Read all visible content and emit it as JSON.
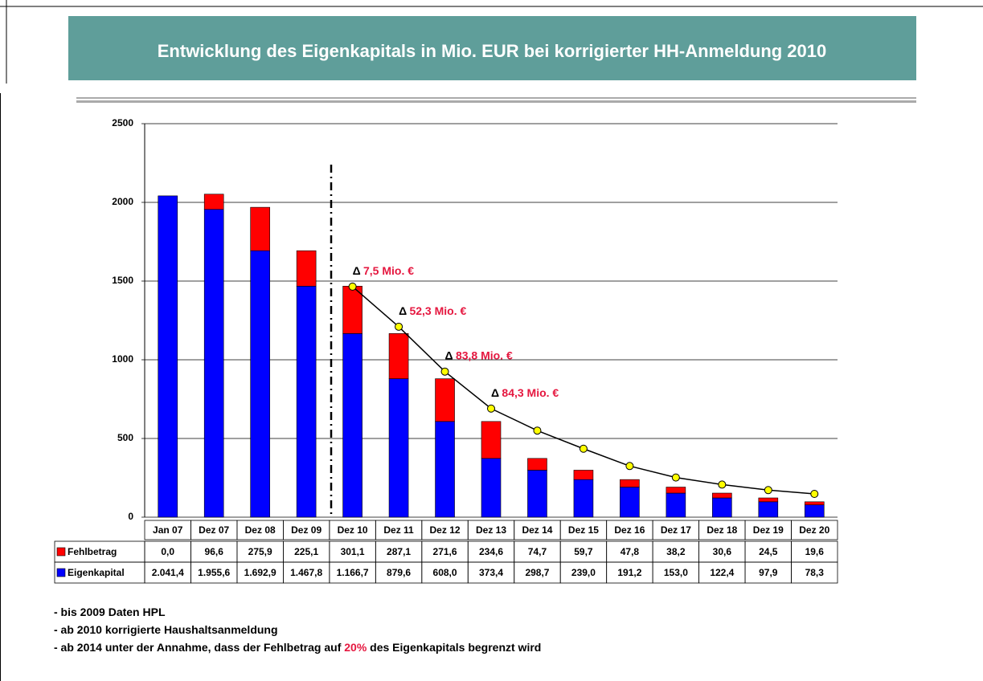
{
  "chart_data": {
    "type": "bar",
    "stacked": true,
    "title": "Entwicklung des Eigenkapitals in Mio. EUR bei korrigierter HH-Anmeldung 2010",
    "categories": [
      "Jan 07",
      "Dez 07",
      "Dez 08",
      "Dez 09",
      "Dez 10",
      "Dez 11",
      "Dez 12",
      "Dez 13",
      "Dez 14",
      "Dez 15",
      "Dez 16",
      "Dez 17",
      "Dez 18",
      "Dez 19",
      "Dez 20"
    ],
    "series": [
      {
        "name": "Eigenkapital",
        "color": "#0000ff",
        "values": [
          2041.4,
          1955.6,
          1692.9,
          1467.8,
          1166.7,
          879.6,
          608.0,
          373.4,
          298.7,
          239.0,
          191.2,
          153.0,
          122.4,
          97.9,
          78.3
        ],
        "value_labels": [
          "2.041,4",
          "1.955,6",
          "1.692,9",
          "1.467,8",
          "1.166,7",
          "879,6",
          "608,0",
          "373,4",
          "298,7",
          "239,0",
          "191,2",
          "153,0",
          "122,4",
          "97,9",
          "78,3"
        ]
      },
      {
        "name": "Fehlbetrag",
        "color": "#ff0000",
        "values": [
          0,
          96.6,
          275.9,
          225.1,
          301.1,
          287.1,
          271.6,
          234.6,
          74.7,
          59.7,
          47.8,
          38.2,
          30.6,
          24.5,
          19.6
        ],
        "value_labels": [
          "0,0",
          "96,6",
          "275,9",
          "225,1",
          "301,1",
          "287,1",
          "271,6",
          "234,6",
          "74,7",
          "59,7",
          "47,8",
          "38,2",
          "30,6",
          "24,5",
          "19,6"
        ]
      },
      {
        "type": "line",
        "color": "#000000",
        "marker_color": "#ffff00",
        "values": [
          null,
          null,
          null,
          null,
          1465,
          1210,
          925,
          690,
          550,
          435,
          325,
          252,
          207,
          172,
          148
        ]
      }
    ],
    "ylim": [
      0,
      2500
    ],
    "yticks": [
      0,
      500,
      1000,
      1500,
      2000,
      2500
    ],
    "grid": true,
    "annotations": [
      {
        "delta": "Δ",
        "text": "7,5 Mio. €"
      },
      {
        "delta": "Δ",
        "text": "52,3 Mio. €"
      },
      {
        "delta": "Δ",
        "text": "83,8 Mio. €"
      },
      {
        "delta": "Δ",
        "text": "84,3 Mio. €"
      }
    ],
    "notes": [
      [
        "- bis 2009 Daten HPL"
      ],
      [
        "- ab 2010 korrigierte Haushaltsanmeldung"
      ],
      [
        "- ab 2014 unter der Annahme, dass der Fehlbetrag auf ",
        "20%",
        " des Eigenkapitals begrenzt wird"
      ]
    ]
  }
}
